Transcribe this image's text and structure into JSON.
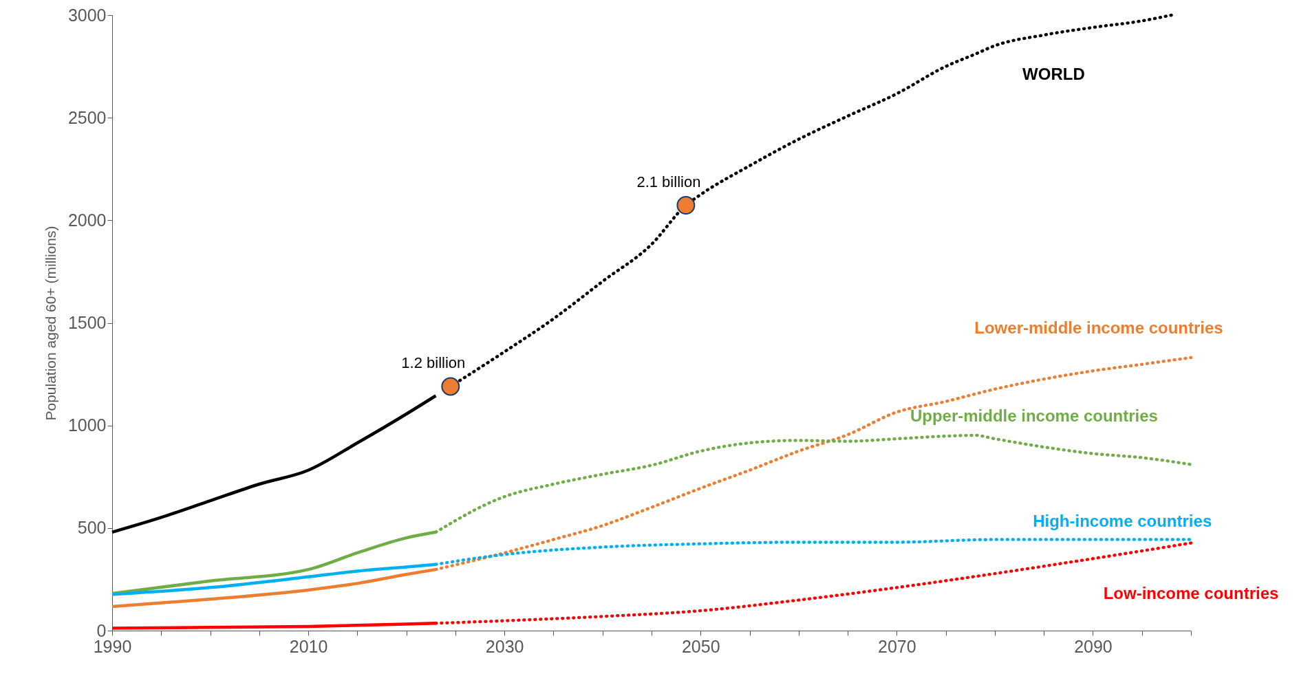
{
  "chart_data": {
    "type": "line",
    "ylabel": "Population aged 60+ (millions)",
    "xlim": [
      1990,
      2100
    ],
    "ylim": [
      0,
      3000
    ],
    "xticks": [
      1990,
      {
        "value": 1995,
        "label": null
      },
      {
        "value": 2000,
        "label": null
      },
      {
        "value": 2005,
        "label": null
      },
      2010,
      {
        "value": 2015,
        "label": null
      },
      {
        "value": 2020,
        "label": null
      },
      {
        "value": 2025,
        "label": null
      },
      2030,
      {
        "value": 2035,
        "label": null
      },
      {
        "value": 2040,
        "label": null
      },
      {
        "value": 2045,
        "label": null
      },
      2050,
      {
        "value": 2055,
        "label": null
      },
      {
        "value": 2060,
        "label": null
      },
      {
        "value": 2065,
        "label": null
      },
      2070,
      {
        "value": 2075,
        "label": null
      },
      {
        "value": 2080,
        "label": null
      },
      {
        "value": 2085,
        "label": null
      },
      2090,
      {
        "value": 2095,
        "label": null
      },
      {
        "value": 2100,
        "label": null
      }
    ],
    "yticks": [
      0,
      500,
      1000,
      1500,
      2000,
      2500,
      3000
    ],
    "grid": false,
    "marker": "none",
    "series": [
      {
        "color": "#000000",
        "line_style": "solid",
        "x": [
          1990,
          1995,
          2000,
          2005,
          2010,
          2015,
          2020,
          2023
        ],
        "values": [
          480,
          552,
          633,
          714,
          782,
          915,
          1056,
          1145
        ]
      },
      {
        "name": "WORLD",
        "color": "#000000",
        "line_style": "dotted",
        "x": [
          2024.5,
          2030,
          2035,
          2040,
          2045,
          2048.5,
          2050,
          2055,
          2060,
          2065,
          2070,
          2075,
          2078,
          2080,
          2085,
          2090,
          2095,
          2098
        ],
        "values": [
          1190,
          1359,
          1520,
          1702,
          1883,
          2073,
          2125,
          2266,
          2395,
          2508,
          2617,
          2750,
          2810,
          2851,
          2903,
          2940,
          2972,
          3000
        ]
      },
      {
        "color": "#ed7d31",
        "line_style": "solid",
        "x": [
          1990,
          2000,
          2010,
          2015,
          2020,
          2023
        ],
        "values": [
          117,
          153,
          198,
          230,
          274,
          298
        ]
      },
      {
        "name": "Lower-middle income countries",
        "color": "#ed7d31",
        "line_style": "dotted",
        "x": [
          2023,
          2030,
          2035,
          2040,
          2045,
          2050,
          2055,
          2060,
          2065,
          2070,
          2075,
          2080,
          2085,
          2090,
          2095,
          2100
        ],
        "values": [
          298,
          379,
          444,
          512,
          601,
          694,
          782,
          875,
          955,
          1065,
          1117,
          1177,
          1226,
          1266,
          1298,
          1331
        ]
      },
      {
        "color": "#70ad47",
        "line_style": "solid",
        "x": [
          1990,
          2000,
          2010,
          2015,
          2020,
          2023
        ],
        "values": [
          181,
          242,
          298,
          379,
          452,
          480
        ]
      },
      {
        "name": "Upper-middle income countries",
        "color": "#70ad47",
        "line_style": "dotted",
        "x": [
          2023,
          2030,
          2035,
          2040,
          2045,
          2050,
          2055,
          2060,
          2065,
          2070,
          2075,
          2078,
          2080,
          2085,
          2090,
          2095,
          2100
        ],
        "values": [
          480,
          653,
          714,
          762,
          806,
          875,
          915,
          927,
          923,
          935,
          948,
          952,
          935,
          895,
          863,
          843,
          810
        ]
      },
      {
        "color": "#00b0f0",
        "line_style": "solid",
        "x": [
          1990,
          2000,
          2010,
          2015,
          2020,
          2023
        ],
        "values": [
          177,
          210,
          262,
          290,
          310,
          323
        ]
      },
      {
        "name": "High-income countries",
        "color": "#00b0f0",
        "line_style": "dotted",
        "x": [
          2023,
          2030,
          2040,
          2050,
          2060,
          2070,
          2080,
          2090,
          2100
        ],
        "values": [
          323,
          371,
          407,
          423,
          431,
          431,
          444,
          444,
          444
        ]
      },
      {
        "color": "#ff0000",
        "line_style": "solid",
        "x": [
          1990,
          2000,
          2010,
          2020,
          2023
        ],
        "values": [
          12,
          16,
          20,
          32,
          36
        ]
      },
      {
        "name": "Low-income countries",
        "color": "#ff0000",
        "line_style": "dotted",
        "x": [
          2023,
          2030,
          2040,
          2050,
          2060,
          2070,
          2080,
          2090,
          2100
        ],
        "values": [
          36,
          48,
          69,
          97,
          149,
          210,
          278,
          351,
          427
        ]
      },
      {
        "type": "scatter",
        "color": "#ed7d31",
        "marker": "circle",
        "x": [
          2024.5,
          2048.5
        ],
        "values": [
          1190,
          2073
        ]
      }
    ],
    "annotations": [
      {
        "text": "1.2 billion",
        "x": 2024.5,
        "y": 1190
      },
      {
        "text": "2.1 billion",
        "x": 2048.5,
        "y": 2073
      }
    ]
  }
}
